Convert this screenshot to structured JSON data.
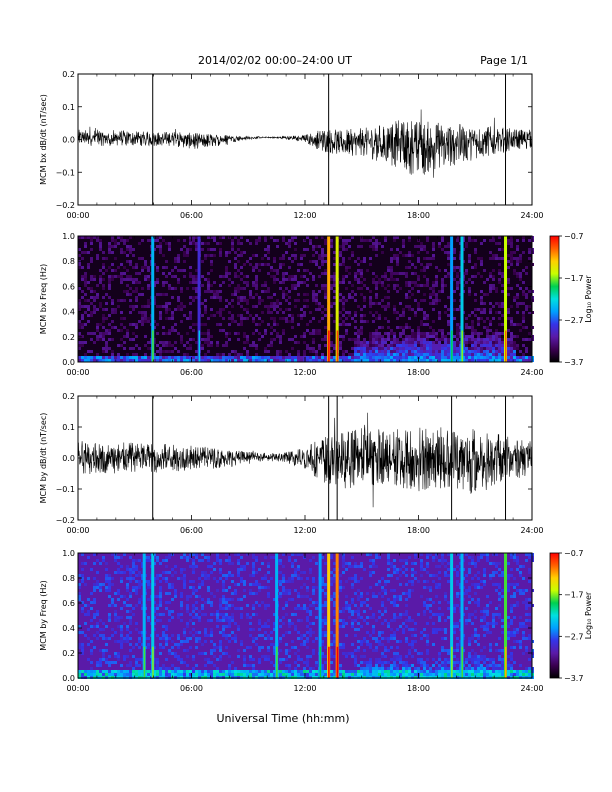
{
  "header": {
    "title": "2014/02/02  00:00–24:00 UT",
    "page_label": "Page 1/1"
  },
  "footer": {
    "xlabel": "Universal Time (hh:mm)"
  },
  "colors": {
    "trace": "#000000",
    "axis": "#000000",
    "background": "#ffffff",
    "colormap": [
      "#000000",
      "#3a0050",
      "#5a1aa8",
      "#3434e8",
      "#00a0ff",
      "#00e0e0",
      "#00d050",
      "#c8ff00",
      "#ffd000",
      "#ff6000",
      "#ff0000"
    ]
  },
  "chart_data": [
    {
      "type": "line",
      "id": "bx-dbdt",
      "ylabel": "MCM bx dB/dt (nT/sec)",
      "x_ticks": [
        "00:00",
        "06:00",
        "12:00",
        "18:00",
        "24:00"
      ],
      "xlim": [
        0,
        24
      ],
      "ylim": [
        -0.2,
        0.2
      ],
      "y_ticks": [
        "0.2",
        "0.1",
        "0.0",
        "−0.1",
        "−0.2"
      ],
      "y_tick_values": [
        0.2,
        0.1,
        0.0,
        -0.1,
        -0.2
      ],
      "series": [
        {
          "x": [
            0,
            1,
            2,
            3,
            4,
            5,
            6,
            7,
            8,
            9,
            10,
            11,
            12,
            13,
            14,
            15,
            16,
            17,
            18,
            19,
            20,
            21,
            22,
            23,
            24
          ],
          "y": [
            0.03,
            0.03,
            0.03,
            0.025,
            0.025,
            0.025,
            0.02,
            0.02,
            0.015,
            0.01,
            0.008,
            0.01,
            0.015,
            0.035,
            0.03,
            0.035,
            0.05,
            0.06,
            0.06,
            0.055,
            0.05,
            0.045,
            0.04,
            0.035,
            0.03
          ],
          "ymin": [
            -0.02,
            -0.02,
            -0.02,
            -0.02,
            -0.02,
            -0.02,
            -0.03,
            -0.025,
            -0.01,
            0.0,
            0.005,
            0.0,
            -0.01,
            -0.04,
            -0.05,
            -0.05,
            -0.07,
            -0.09,
            -0.12,
            -0.09,
            -0.08,
            -0.06,
            -0.05,
            -0.03,
            -0.03
          ]
        }
      ],
      "spikes": [
        {
          "x": 3.95,
          "y_low": -0.2,
          "y_high": 0.2
        },
        {
          "x": 13.25,
          "y_low": -0.2,
          "y_high": 0.2
        },
        {
          "x": 22.6,
          "y_low": -0.2,
          "y_high": 0.2
        }
      ]
    },
    {
      "type": "heatmap",
      "id": "bx-spectrogram",
      "ylabel": "MCM bx Freq (Hz)",
      "x_ticks": [
        "00:00",
        "06:00",
        "12:00",
        "18:00",
        "24:00"
      ],
      "xlim": [
        0,
        24
      ],
      "ylim": [
        0,
        1.0
      ],
      "y_ticks": [
        "1.0",
        "0.8",
        "0.6",
        "0.4",
        "0.2",
        "0.0"
      ],
      "y_tick_values": [
        1.0,
        0.8,
        0.6,
        0.4,
        0.2,
        0.0
      ],
      "background_level": -3.6,
      "low_band": {
        "max_freq": 0.06,
        "level": -2.8
      },
      "activity_region": {
        "x_start": 14.5,
        "x_end": 23.0,
        "max_freq": 0.25,
        "level": -2.9
      },
      "vertical_lines": [
        {
          "x": 3.95,
          "level": -2.4
        },
        {
          "x": 6.4,
          "level": -2.9
        },
        {
          "x": 13.25,
          "level": -1.2
        },
        {
          "x": 13.7,
          "level": -1.5
        },
        {
          "x": 19.75,
          "level": -2.5
        },
        {
          "x": 20.3,
          "level": -2.3
        },
        {
          "x": 22.6,
          "level": -1.6
        }
      ],
      "colorbar": {
        "label": "Log₁₀ Power",
        "min": -3.7,
        "max": -0.7,
        "ticks": [
          "−0.7",
          "−1.7",
          "−2.7",
          "−3.7"
        ],
        "tick_values": [
          -0.7,
          -1.7,
          -2.7,
          -3.7
        ]
      }
    },
    {
      "type": "line",
      "id": "by-dbdt",
      "ylabel": "MCM by dB/dt (nT/sec)",
      "x_ticks": [
        "00:00",
        "06:00",
        "12:00",
        "18:00",
        "24:00"
      ],
      "xlim": [
        0,
        24
      ],
      "ylim": [
        -0.2,
        0.2
      ],
      "y_ticks": [
        "0.2",
        "0.1",
        "0.0",
        "−0.1",
        "−0.2"
      ],
      "y_tick_values": [
        0.2,
        0.1,
        0.0,
        -0.1,
        -0.2
      ],
      "series": [
        {
          "x": [
            0,
            1,
            2,
            3,
            4,
            5,
            6,
            7,
            8,
            9,
            10,
            11,
            12,
            13,
            14,
            15,
            16,
            17,
            18,
            19,
            20,
            21,
            22,
            23,
            24
          ],
          "y": [
            0.06,
            0.05,
            0.05,
            0.05,
            0.05,
            0.045,
            0.04,
            0.035,
            0.03,
            0.02,
            0.015,
            0.02,
            0.04,
            0.07,
            0.09,
            0.1,
            0.1,
            0.1,
            0.11,
            0.1,
            0.1,
            0.1,
            0.08,
            0.07,
            0.06
          ],
          "ymin": [
            -0.06,
            -0.05,
            -0.05,
            -0.05,
            -0.05,
            -0.045,
            -0.04,
            -0.035,
            -0.03,
            -0.01,
            -0.01,
            -0.015,
            -0.04,
            -0.08,
            -0.1,
            -0.1,
            -0.1,
            -0.1,
            -0.11,
            -0.1,
            -0.1,
            -0.12,
            -0.09,
            -0.07,
            -0.06
          ]
        }
      ],
      "spikes": [
        {
          "x": 3.95,
          "y_low": -0.2,
          "y_high": 0.2
        },
        {
          "x": 13.25,
          "y_low": -0.2,
          "y_high": 0.2
        },
        {
          "x": 13.7,
          "y_low": -0.2,
          "y_high": 0.2
        },
        {
          "x": 19.75,
          "y_low": -0.2,
          "y_high": 0.2
        },
        {
          "x": 22.6,
          "y_low": -0.2,
          "y_high": 0.2
        }
      ]
    },
    {
      "type": "heatmap",
      "id": "by-spectrogram",
      "ylabel": "MCM by Freq (Hz)",
      "x_ticks": [
        "00:00",
        "06:00",
        "12:00",
        "18:00",
        "24:00"
      ],
      "xlim": [
        0,
        24
      ],
      "ylim": [
        0,
        1.0
      ],
      "y_ticks": [
        "1.0",
        "0.8",
        "0.6",
        "0.4",
        "0.2",
        "0.0"
      ],
      "y_tick_values": [
        1.0,
        0.8,
        0.6,
        0.4,
        0.2,
        0.0
      ],
      "background_level": -3.1,
      "low_band": {
        "max_freq": 0.07,
        "level": -2.4
      },
      "activity_region": {
        "x_start": 14.5,
        "x_end": 23.0,
        "max_freq": 0.2,
        "level": -2.7
      },
      "vertical_lines": [
        {
          "x": 3.5,
          "level": -2.4
        },
        {
          "x": 3.95,
          "level": -2.3
        },
        {
          "x": 10.5,
          "level": -2.4
        },
        {
          "x": 12.8,
          "level": -2.5
        },
        {
          "x": 13.25,
          "level": -1.3
        },
        {
          "x": 13.7,
          "level": -1.1
        },
        {
          "x": 19.75,
          "level": -2.3
        },
        {
          "x": 20.3,
          "level": -2.4
        },
        {
          "x": 22.6,
          "level": -1.8
        }
      ],
      "colorbar": {
        "label": "Log₁₀ Power",
        "min": -3.7,
        "max": -0.7,
        "ticks": [
          "−0.7",
          "−1.7",
          "−2.7",
          "−3.7"
        ],
        "tick_values": [
          -0.7,
          -1.7,
          -2.7,
          -3.7
        ]
      }
    }
  ]
}
